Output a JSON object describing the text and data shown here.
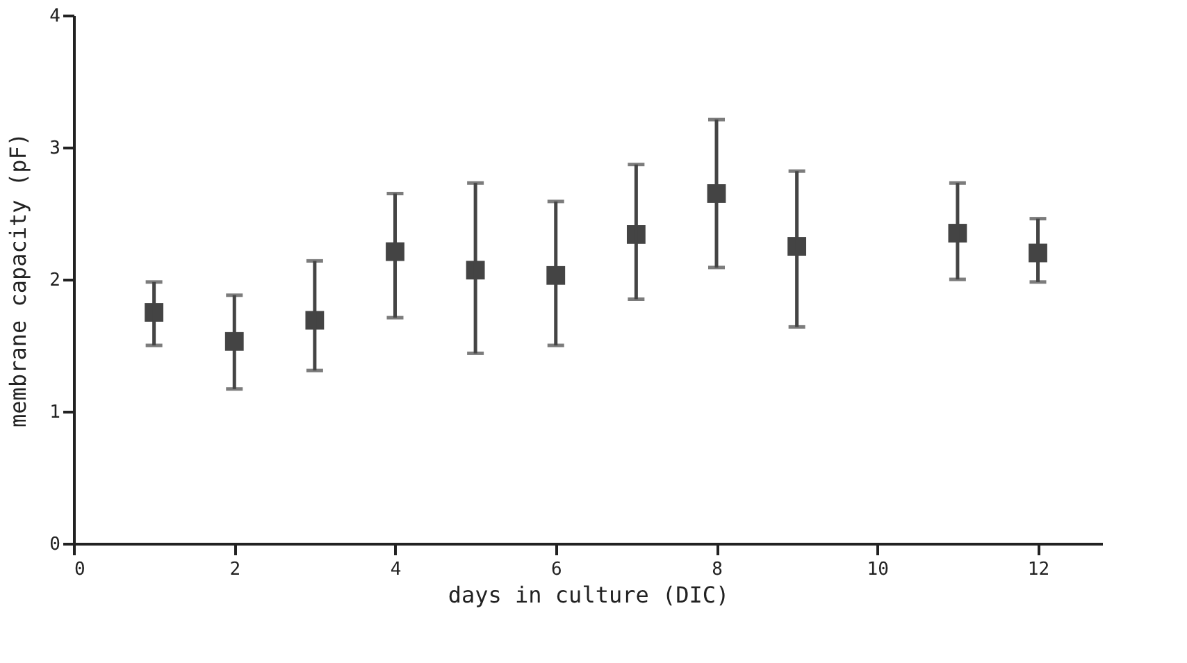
{
  "chart_data": {
    "type": "scatter",
    "xlabel": "days in culture (DIC)",
    "ylabel": "membrane capacity (pF)",
    "x": [
      1,
      2,
      3,
      4,
      5,
      6,
      7,
      8,
      9,
      11,
      12
    ],
    "values": [
      1.75,
      1.53,
      1.69,
      2.21,
      2.07,
      2.03,
      2.34,
      2.65,
      2.25,
      2.35,
      2.2
    ],
    "errors": [
      [
        1.5,
        1.98
      ],
      [
        1.17,
        1.88
      ],
      [
        1.31,
        2.14
      ],
      [
        1.71,
        2.65
      ],
      [
        1.44,
        2.73
      ],
      [
        1.5,
        2.59
      ],
      [
        1.85,
        2.87
      ],
      [
        2.09,
        3.21
      ],
      [
        1.64,
        2.82
      ],
      [
        2.0,
        2.73
      ],
      [
        1.98,
        2.46
      ]
    ],
    "color": "#444444",
    "marker": "square",
    "xlim": [
      0,
      12.8
    ],
    "xticks": [
      0,
      2,
      4,
      6,
      8,
      10,
      12
    ],
    "ylim": [
      0,
      4
    ],
    "yticks": [
      0,
      1,
      2,
      3,
      4
    ],
    "grid": false
  }
}
